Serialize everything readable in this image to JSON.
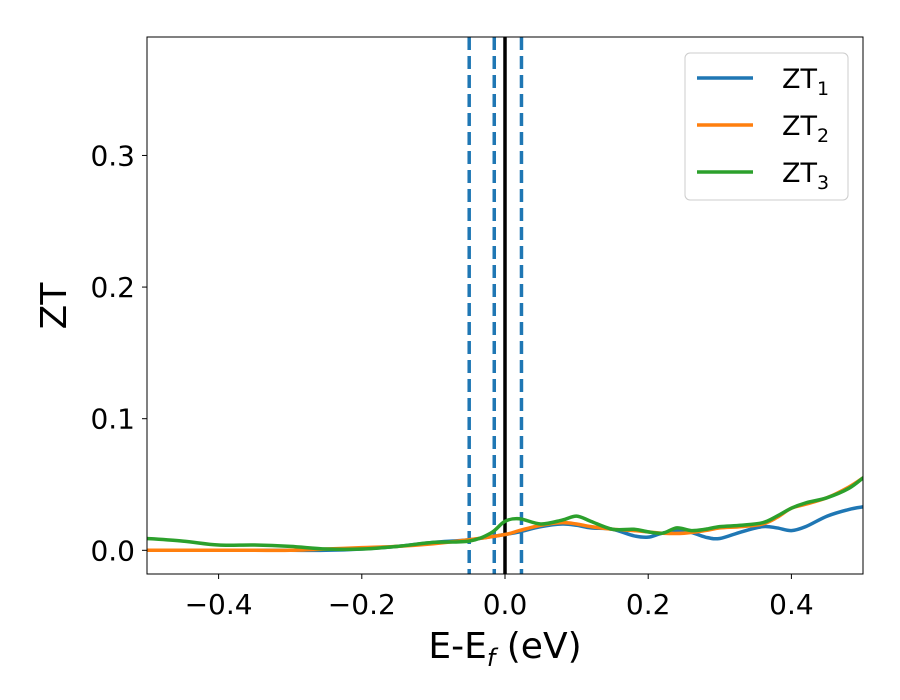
{
  "chart_data": {
    "type": "line",
    "title": "",
    "xlabel": {
      "main": "E-E",
      "sub": "f",
      "suffix": " (eV)"
    },
    "ylabel": "ZT",
    "xlim": [
      -0.5,
      0.5
    ],
    "ylim": [
      -0.018,
      0.39
    ],
    "grid": false,
    "legend_position": "top-right",
    "xticks": [
      -0.4,
      -0.2,
      0.0,
      0.2,
      0.4
    ],
    "xtick_labels": [
      "−0.4",
      "−0.2",
      "0.0",
      "0.2",
      "0.4"
    ],
    "yticks": [
      0.0,
      0.1,
      0.2,
      0.3
    ],
    "ytick_labels": [
      "0.0",
      "0.1",
      "0.2",
      "0.3"
    ],
    "vlines": [
      {
        "x": -0.05,
        "style": "dashed",
        "color": "#1f77b4"
      },
      {
        "x": -0.015,
        "style": "dashed",
        "color": "#1f77b4"
      },
      {
        "x": 0.0,
        "style": "solid",
        "color": "#000000"
      },
      {
        "x": 0.023,
        "style": "dashed",
        "color": "#1f77b4"
      }
    ],
    "series": [
      {
        "name": "ZT",
        "sub": "1",
        "color": "#1f77b4",
        "x": [
          -0.5,
          -0.45,
          -0.4,
          -0.35,
          -0.3,
          -0.25,
          -0.2,
          -0.15,
          -0.1,
          -0.05,
          0.0,
          0.02,
          0.05,
          0.08,
          0.1,
          0.12,
          0.15,
          0.18,
          0.2,
          0.22,
          0.25,
          0.28,
          0.3,
          0.33,
          0.36,
          0.38,
          0.4,
          0.42,
          0.45,
          0.48,
          0.5
        ],
        "y": [
          0.0,
          0.0,
          0.0,
          0.0,
          0.0,
          0.0,
          0.001,
          0.003,
          0.006,
          0.008,
          0.012,
          0.014,
          0.018,
          0.02,
          0.019,
          0.017,
          0.016,
          0.011,
          0.01,
          0.013,
          0.015,
          0.01,
          0.009,
          0.014,
          0.018,
          0.017,
          0.015,
          0.018,
          0.026,
          0.031,
          0.033
        ]
      },
      {
        "name": "ZT",
        "sub": "2",
        "color": "#ff7f0e",
        "x": [
          -0.5,
          -0.45,
          -0.4,
          -0.35,
          -0.3,
          -0.25,
          -0.2,
          -0.15,
          -0.1,
          -0.05,
          0.0,
          0.02,
          0.05,
          0.08,
          0.1,
          0.12,
          0.15,
          0.18,
          0.2,
          0.22,
          0.25,
          0.28,
          0.3,
          0.33,
          0.36,
          0.38,
          0.4,
          0.42,
          0.45,
          0.48,
          0.5
        ],
        "y": [
          0.0,
          0.0,
          0.0,
          0.0,
          0.0,
          0.001,
          0.002,
          0.003,
          0.005,
          0.008,
          0.012,
          0.015,
          0.019,
          0.021,
          0.02,
          0.018,
          0.016,
          0.015,
          0.014,
          0.013,
          0.013,
          0.015,
          0.017,
          0.018,
          0.02,
          0.025,
          0.032,
          0.035,
          0.04,
          0.048,
          0.055
        ]
      },
      {
        "name": "ZT",
        "sub": "3",
        "color": "#2ca02c",
        "x": [
          -0.5,
          -0.45,
          -0.4,
          -0.35,
          -0.3,
          -0.25,
          -0.2,
          -0.15,
          -0.1,
          -0.05,
          -0.02,
          0.0,
          0.02,
          0.05,
          0.08,
          0.1,
          0.12,
          0.15,
          0.18,
          0.2,
          0.22,
          0.24,
          0.26,
          0.28,
          0.3,
          0.33,
          0.36,
          0.38,
          0.4,
          0.42,
          0.45,
          0.48,
          0.5
        ],
        "y": [
          0.009,
          0.007,
          0.004,
          0.004,
          0.003,
          0.001,
          0.001,
          0.003,
          0.006,
          0.007,
          0.013,
          0.022,
          0.024,
          0.02,
          0.023,
          0.026,
          0.022,
          0.016,
          0.016,
          0.014,
          0.013,
          0.017,
          0.015,
          0.016,
          0.018,
          0.019,
          0.021,
          0.026,
          0.032,
          0.036,
          0.04,
          0.047,
          0.055
        ]
      }
    ]
  }
}
